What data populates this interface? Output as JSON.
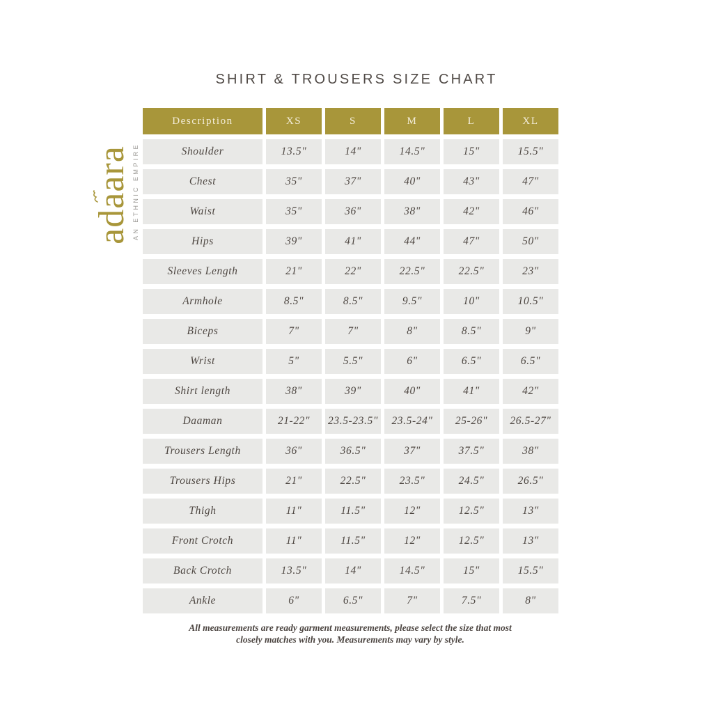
{
  "title": "SHIRT & TROUSERS SIZE CHART",
  "logo": {
    "brand": "adaara",
    "tagline": "AN ETHNIC EMPIRE"
  },
  "colors": {
    "header_bg": "#a8963a",
    "header_text": "#f3edda",
    "cell_bg": "#e9e9e7",
    "body_text": "#4e4742",
    "title_text": "#514b47",
    "logo_gold": "#a8963a",
    "tagline_gray": "#9a9894",
    "page_bg": "#ffffff"
  },
  "chart_data": {
    "type": "table",
    "title": "SHIRT & TROUSERS SIZE CHART",
    "columns": [
      "Description",
      "XS",
      "S",
      "M",
      "L",
      "XL"
    ],
    "rows": [
      [
        "Shoulder",
        "13.5\"",
        "14\"",
        "14.5\"",
        "15\"",
        "15.5\""
      ],
      [
        "Chest",
        "35\"",
        "37\"",
        "40\"",
        "43\"",
        "47\""
      ],
      [
        "Waist",
        "35\"",
        "36\"",
        "38\"",
        "42\"",
        "46\""
      ],
      [
        "Hips",
        "39\"",
        "41\"",
        "44\"",
        "47\"",
        "50\""
      ],
      [
        "Sleeves Length",
        "21\"",
        "22\"",
        "22.5\"",
        "22.5\"",
        "23\""
      ],
      [
        "Armhole",
        "8.5\"",
        "8.5\"",
        "9.5\"",
        "10\"",
        "10.5\""
      ],
      [
        "Biceps",
        "7\"",
        "7\"",
        "8\"",
        "8.5\"",
        "9\""
      ],
      [
        "Wrist",
        "5\"",
        "5.5\"",
        "6\"",
        "6.5\"",
        "6.5\""
      ],
      [
        "Shirt length",
        "38\"",
        "39\"",
        "40\"",
        "41\"",
        "42\""
      ],
      [
        "Daaman",
        "21-22\"",
        "23.5-23.5\"",
        "23.5-24\"",
        "25-26\"",
        "26.5-27\""
      ],
      [
        "Trousers Length",
        "36\"",
        "36.5\"",
        "37\"",
        "37.5\"",
        "38\""
      ],
      [
        "Trousers Hips",
        "21\"",
        "22.5\"",
        "23.5\"",
        "24.5\"",
        "26.5\""
      ],
      [
        "Thigh",
        "11\"",
        "11.5\"",
        "12\"",
        "12.5\"",
        "13\""
      ],
      [
        "Front Crotch",
        "11\"",
        "11.5\"",
        "12\"",
        "12.5\"",
        "13\""
      ],
      [
        "Back Crotch",
        "13.5\"",
        "14\"",
        "14.5\"",
        "15\"",
        "15.5\""
      ],
      [
        "Ankle",
        "6\"",
        "6.5\"",
        "7\"",
        "7.5\"",
        "8\""
      ]
    ]
  },
  "footer": {
    "lines": [
      "All measurements are ready garment measurements, please select the size that most",
      "closely matches with you. Measurements may vary by style."
    ]
  }
}
